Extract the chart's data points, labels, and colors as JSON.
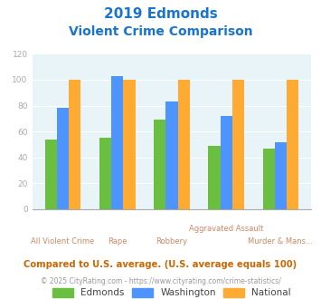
{
  "title_line1": "2019 Edmonds",
  "title_line2": "Violent Crime Comparison",
  "title_color": "#1874cd",
  "categories": [
    "All Violent Crime",
    "Rape",
    "Robbery",
    "Aggravated Assault",
    "Murder & Mans..."
  ],
  "edmonds": [
    54,
    55,
    69,
    49,
    47
  ],
  "washington": [
    78,
    103,
    83,
    72,
    52
  ],
  "national": [
    100,
    100,
    100,
    100,
    100
  ],
  "edmonds_color": "#6abf40",
  "washington_color": "#4d94ff",
  "national_color": "#ffaa33",
  "bg_color": "#dce9f0",
  "plot_bg": "#e8f4f8",
  "ylim": [
    0,
    120
  ],
  "yticks": [
    0,
    20,
    40,
    60,
    80,
    100,
    120
  ],
  "footnote1": "Compared to U.S. average. (U.S. average equals 100)",
  "footnote2": "© 2025 CityRating.com - https://www.cityrating.com/crime-statistics/",
  "footnote1_color": "#cc6600",
  "footnote2_color": "#999999",
  "footnote2_link_color": "#3399cc",
  "label_color": "#cc8866",
  "ytick_color": "#aaaaaa"
}
